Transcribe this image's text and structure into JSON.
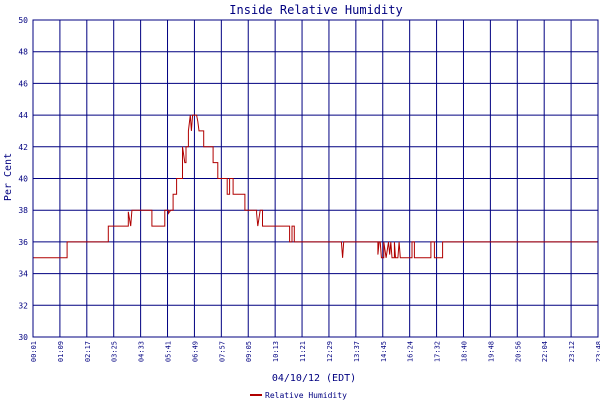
{
  "chart_data": {
    "type": "line",
    "title": "Inside Relative Humidity",
    "xlabel": "04/10/12 (EDT)",
    "ylabel": "Per Cent",
    "ylim": [
      30,
      50
    ],
    "yticks": [
      "30",
      "32",
      "34",
      "36",
      "38",
      "40",
      "42",
      "44",
      "46",
      "48",
      "50"
    ],
    "xticks": [
      "00:01",
      "01:09",
      "02:17",
      "03:25",
      "04:33",
      "05:41",
      "06:49",
      "07:57",
      "09:05",
      "10:13",
      "11:21",
      "12:29",
      "13:37",
      "14:45",
      "16:24",
      "17:32",
      "18:40",
      "19:48",
      "20:56",
      "22:04",
      "23:12",
      "23:48"
    ],
    "grid": true,
    "legend": "bottom-center",
    "colors": {
      "series": "#b00000",
      "grid": "#000080",
      "text": "#000080",
      "frame": "#000080"
    },
    "series": [
      {
        "name": "Relative Humidity",
        "points": [
          [
            0.0,
            35
          ],
          [
            1.45,
            35
          ],
          [
            1.45,
            36
          ],
          [
            3.2,
            36
          ],
          [
            3.2,
            37
          ],
          [
            4.05,
            37
          ],
          [
            4.05,
            37.9
          ],
          [
            4.15,
            37
          ],
          [
            4.2,
            38
          ],
          [
            4.5,
            38
          ],
          [
            4.5,
            38
          ],
          [
            5.05,
            38
          ],
          [
            5.05,
            37
          ],
          [
            5.6,
            37
          ],
          [
            5.6,
            38
          ],
          [
            5.75,
            38
          ],
          [
            5.75,
            37.8
          ],
          [
            5.85,
            38
          ],
          [
            5.95,
            38
          ],
          [
            5.95,
            39
          ],
          [
            6.1,
            39
          ],
          [
            6.1,
            40
          ],
          [
            6.35,
            40
          ],
          [
            6.35,
            42
          ],
          [
            6.45,
            41
          ],
          [
            6.5,
            41
          ],
          [
            6.5,
            42
          ],
          [
            6.6,
            42
          ],
          [
            6.6,
            43
          ],
          [
            6.68,
            44
          ],
          [
            6.73,
            43
          ],
          [
            6.78,
            44
          ],
          [
            6.95,
            44
          ],
          [
            7.0,
            43.6
          ],
          [
            7.05,
            43
          ],
          [
            7.25,
            43
          ],
          [
            7.25,
            42
          ],
          [
            7.65,
            42
          ],
          [
            7.65,
            41
          ],
          [
            7.85,
            41
          ],
          [
            7.85,
            40
          ],
          [
            8.25,
            40
          ],
          [
            8.25,
            39
          ],
          [
            8.35,
            39
          ],
          [
            8.35,
            40
          ],
          [
            8.5,
            40
          ],
          [
            8.5,
            39
          ],
          [
            9.0,
            39
          ],
          [
            9.0,
            38
          ],
          [
            9.5,
            38
          ],
          [
            9.5,
            37.8
          ],
          [
            9.55,
            37
          ],
          [
            9.65,
            38
          ],
          [
            9.75,
            38
          ],
          [
            9.75,
            37
          ],
          [
            10.9,
            37
          ],
          [
            10.9,
            36
          ],
          [
            11.0,
            36
          ],
          [
            11.0,
            37
          ],
          [
            11.1,
            37
          ],
          [
            11.1,
            36
          ],
          [
            13.1,
            36
          ],
          [
            13.15,
            35
          ],
          [
            13.2,
            36
          ],
          [
            14.65,
            36
          ],
          [
            14.65,
            35.2
          ],
          [
            14.7,
            36
          ],
          [
            14.75,
            36
          ],
          [
            14.8,
            35
          ],
          [
            14.9,
            35
          ],
          [
            14.9,
            36
          ],
          [
            15.0,
            35
          ],
          [
            15.1,
            36
          ],
          [
            15.15,
            35.2
          ],
          [
            15.2,
            36
          ],
          [
            15.25,
            35
          ],
          [
            15.35,
            35
          ],
          [
            15.35,
            36
          ],
          [
            15.4,
            35
          ],
          [
            15.5,
            35
          ],
          [
            15.55,
            36
          ],
          [
            15.6,
            35
          ],
          [
            16.1,
            35
          ],
          [
            16.1,
            36
          ],
          [
            16.2,
            36
          ],
          [
            16.2,
            35
          ],
          [
            16.9,
            35
          ],
          [
            16.9,
            36
          ],
          [
            17.05,
            36
          ],
          [
            17.05,
            35
          ],
          [
            17.4,
            35
          ],
          [
            17.4,
            36
          ],
          [
            24.0,
            36
          ]
        ]
      }
    ]
  }
}
